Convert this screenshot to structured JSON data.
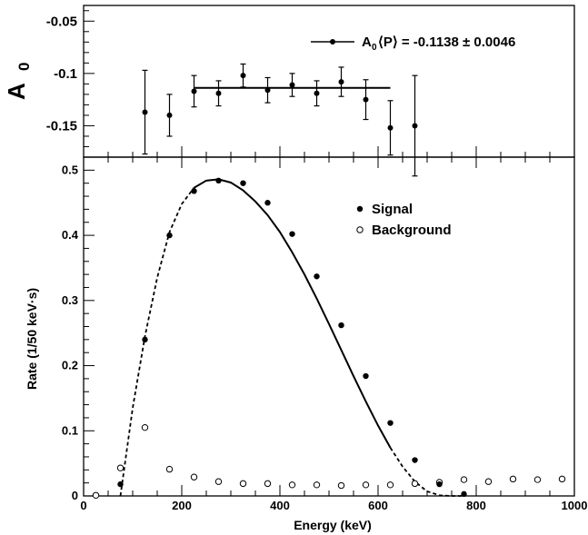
{
  "chart_data": [
    {
      "type": "scatter",
      "panel": "top",
      "ylabel": "A",
      "ylabel_sub": "0",
      "ylim": [
        -0.18,
        -0.035
      ],
      "xlim": [
        0,
        1000
      ],
      "yticks": [
        "-0.05",
        "-0.1",
        "-0.15"
      ],
      "ytick_values": [
        -0.05,
        -0.1,
        -0.15
      ],
      "legend": {
        "prefix": "A",
        "sub": "0",
        "text": "⟨P⟩ = -0.1138 ± 0.0046",
        "placement": "top-right"
      },
      "series": [
        {
          "x": [
            125,
            175,
            225,
            275,
            325,
            375,
            425,
            475,
            525,
            575,
            625,
            675
          ],
          "y": [
            -0.137,
            -0.14,
            -0.117,
            -0.119,
            -0.102,
            -0.116,
            -0.111,
            -0.119,
            -0.108,
            -0.125,
            -0.152,
            -0.15
          ],
          "yerr": [
            0.04,
            0.02,
            0.015,
            0.012,
            0.011,
            0.012,
            0.011,
            0.012,
            0.014,
            0.019,
            0.026,
            0.048
          ]
        }
      ],
      "fit": {
        "x_start": 225,
        "x_end": 625,
        "value": -0.1138
      }
    },
    {
      "type": "scatter",
      "panel": "bottom",
      "xlabel": "Energy (keV)",
      "ylabel": "Rate (1/50 keV·s)",
      "xlim": [
        0,
        1000
      ],
      "ylim": [
        0,
        0.52
      ],
      "xticks": [
        "0",
        "200",
        "400",
        "600",
        "800",
        "1000"
      ],
      "xtick_values": [
        0,
        200,
        400,
        600,
        800,
        1000
      ],
      "yticks": [
        "0",
        "0.1",
        "0.2",
        "0.3",
        "0.4",
        "0.5"
      ],
      "ytick_values": [
        0,
        0.1,
        0.2,
        0.3,
        0.4,
        0.5
      ],
      "legend_placement": "top-right",
      "series": [
        {
          "name": "Signal",
          "marker": "filled-circle",
          "x": [
            75,
            125,
            175,
            225,
            275,
            325,
            375,
            425,
            475,
            525,
            575,
            625,
            675,
            725,
            775
          ],
          "y": [
            0.018,
            0.24,
            0.4,
            0.468,
            0.484,
            0.48,
            0.45,
            0.402,
            0.337,
            0.262,
            0.184,
            0.112,
            0.055,
            0.018,
            0.003
          ]
        },
        {
          "name": "Background",
          "marker": "open-circle",
          "x": [
            25,
            75,
            125,
            175,
            225,
            275,
            325,
            375,
            425,
            475,
            525,
            575,
            625,
            675,
            725,
            775,
            825,
            875,
            925,
            975
          ],
          "y": [
            0.001,
            0.043,
            0.105,
            0.041,
            0.029,
            0.022,
            0.019,
            0.019,
            0.017,
            0.017,
            0.016,
            0.017,
            0.017,
            0.019,
            0.021,
            0.025,
            0.022,
            0.026,
            0.025,
            0.026
          ]
        }
      ],
      "curve": {
        "x": [
          75,
          100,
          125,
          150,
          175,
          200,
          225,
          250,
          275,
          300,
          325,
          350,
          375,
          400,
          425,
          450,
          475,
          500,
          525,
          550,
          575,
          600,
          625,
          650,
          675,
          700,
          725,
          750,
          775
        ],
        "y": [
          0.0,
          0.135,
          0.245,
          0.335,
          0.405,
          0.448,
          0.473,
          0.484,
          0.486,
          0.481,
          0.469,
          0.452,
          0.431,
          0.405,
          0.374,
          0.34,
          0.303,
          0.264,
          0.224,
          0.184,
          0.145,
          0.108,
          0.074,
          0.045,
          0.022,
          0.007,
          0.001,
          0.0,
          0.0
        ],
        "solid_range": [
          225,
          625
        ]
      }
    }
  ]
}
